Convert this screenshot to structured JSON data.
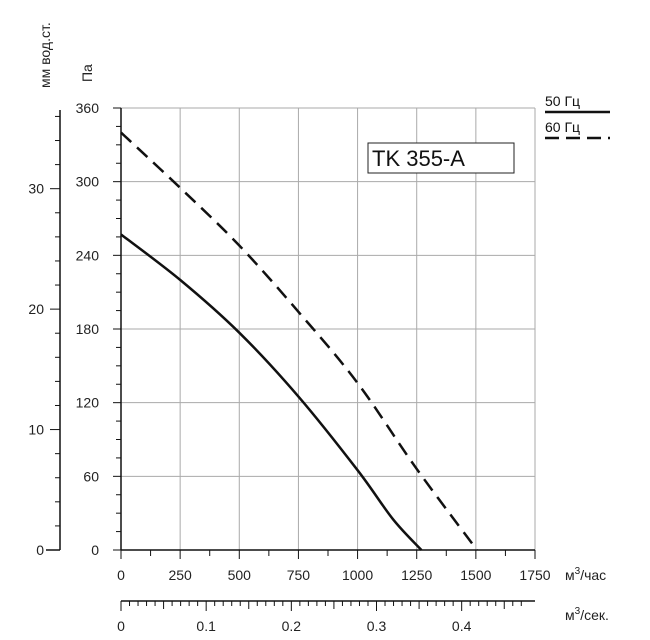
{
  "chart_data": {
    "type": "line",
    "title": "TK 355-A",
    "units": {
      "pressure_pa": "Па",
      "pressure_mm": "мм вод.ст.",
      "flow_m3h_prefix": "м",
      "flow_m3h_sup": "3",
      "flow_m3h_suffix": "/час",
      "flow_m3s_prefix": "м",
      "flow_m3s_sup": "3",
      "flow_m3s_suffix": "/сек."
    },
    "x_axis": {
      "range": [
        0,
        1750
      ],
      "ticks": [
        "0",
        "250",
        "500",
        "750",
        "1000",
        "1250",
        "1500",
        "1750"
      ],
      "tick_values": [
        0,
        250,
        500,
        750,
        1000,
        1250,
        1500,
        1750
      ]
    },
    "x2_axis": {
      "range": [
        0,
        0.4861
      ],
      "ticks": [
        "0",
        "0.1",
        "0.2",
        "0.3",
        "0.4"
      ],
      "tick_values": [
        0,
        0.1,
        0.2,
        0.3,
        0.4
      ]
    },
    "y_axis": {
      "range": [
        0,
        360
      ],
      "ticks": [
        "0",
        "60",
        "120",
        "180",
        "240",
        "300",
        "360"
      ],
      "tick_values": [
        0,
        60,
        120,
        180,
        240,
        300,
        360
      ]
    },
    "y2_axis": {
      "range": [
        0,
        36.7
      ],
      "ticks": [
        "0",
        "10",
        "20",
        "30"
      ],
      "tick_values": [
        0,
        10,
        20,
        30
      ]
    },
    "series": [
      {
        "name": "50 Гц",
        "style": "solid",
        "color": "#111111",
        "points": [
          [
            0,
            257
          ],
          [
            250,
            220
          ],
          [
            500,
            177
          ],
          [
            750,
            125
          ],
          [
            1000,
            65
          ],
          [
            1150,
            25
          ],
          [
            1270,
            0
          ]
        ]
      },
      {
        "name": "60 Гц",
        "style": "dashed",
        "color": "#111111",
        "points": [
          [
            0,
            340
          ],
          [
            250,
            295
          ],
          [
            500,
            248
          ],
          [
            750,
            194
          ],
          [
            1000,
            136
          ],
          [
            1250,
            66
          ],
          [
            1505,
            0
          ]
        ]
      }
    ],
    "grid": true,
    "legend": "top-right"
  }
}
